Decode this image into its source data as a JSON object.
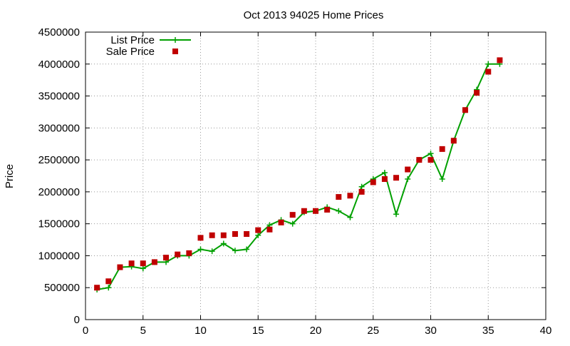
{
  "chart_data": {
    "type": "line",
    "title": "Oct 2013 94025 Home Prices",
    "xlabel": "",
    "ylabel": "Price",
    "xlim": [
      0,
      40
    ],
    "ylim": [
      0,
      4500000
    ],
    "xticks": [
      "0",
      "5",
      "10",
      "15",
      "20",
      "25",
      "30",
      "35",
      "40"
    ],
    "yticks": [
      "0",
      "500000",
      "1000000",
      "1500000",
      "2000000",
      "2500000",
      "3000000",
      "3500000",
      "4000000",
      "4500000"
    ],
    "grid": true,
    "legend": "top-left",
    "series": [
      {
        "name": "List Price",
        "style": "line-points",
        "color": "#00a000",
        "x": [
          1,
          2,
          3,
          4,
          5,
          6,
          7,
          8,
          9,
          10,
          11,
          12,
          13,
          14,
          15,
          16,
          17,
          18,
          19,
          20,
          21,
          22,
          23,
          24,
          25,
          26,
          27,
          28,
          29,
          30,
          31,
          32,
          33,
          34,
          35,
          36
        ],
        "values": [
          470000,
          500000,
          820000,
          830000,
          800000,
          900000,
          900000,
          1000000,
          1000000,
          1100000,
          1070000,
          1190000,
          1080000,
          1100000,
          1320000,
          1480000,
          1560000,
          1500000,
          1680000,
          1700000,
          1760000,
          1700000,
          1600000,
          2080000,
          2200000,
          2300000,
          1650000,
          2200000,
          2500000,
          2600000,
          2200000,
          2800000,
          3280000,
          3600000,
          4000000,
          4000000
        ]
      },
      {
        "name": "Sale Price",
        "style": "points",
        "color": "#c00000",
        "x": [
          1,
          2,
          3,
          4,
          5,
          6,
          7,
          8,
          9,
          10,
          11,
          12,
          13,
          14,
          15,
          16,
          17,
          18,
          19,
          20,
          21,
          22,
          23,
          24,
          25,
          26,
          27,
          28,
          29,
          30,
          31,
          32,
          33,
          34,
          35,
          36
        ],
        "values": [
          500000,
          600000,
          820000,
          880000,
          880000,
          900000,
          970000,
          1020000,
          1040000,
          1280000,
          1320000,
          1320000,
          1340000,
          1340000,
          1400000,
          1410000,
          1520000,
          1640000,
          1700000,
          1700000,
          1720000,
          1920000,
          1940000,
          2000000,
          2150000,
          2200000,
          2220000,
          2350000,
          2500000,
          2500000,
          2670000,
          2800000,
          3280000,
          3550000,
          3880000,
          4060000
        ]
      }
    ]
  }
}
